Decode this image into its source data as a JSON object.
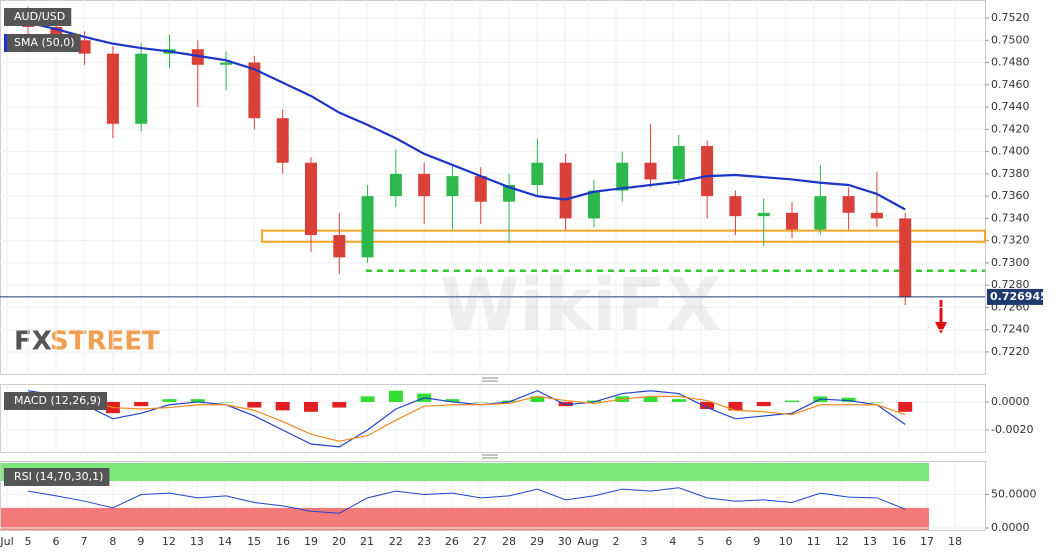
{
  "brand": {
    "prefix": "FX",
    "suffix": "STREET",
    "watermark": "WikiFX"
  },
  "chart_data": [
    {
      "type": "candlestick",
      "title": "AUD/USD",
      "x": [
        0,
        1,
        2,
        3,
        4,
        5,
        6,
        7,
        8,
        9,
        10,
        11,
        12,
        13,
        14,
        15,
        16,
        17,
        18,
        19,
        20,
        21,
        22,
        23,
        24,
        25,
        26,
        27,
        28,
        29,
        30,
        31
      ],
      "open": [
        0.752,
        0.7512,
        0.75,
        0.7488,
        0.7425,
        0.7488,
        0.7492,
        0.7478,
        0.748,
        0.743,
        0.739,
        0.7325,
        0.7305,
        0.736,
        0.738,
        0.736,
        0.7378,
        0.7355,
        0.737,
        0.739,
        0.734,
        0.7365,
        0.739,
        0.7375,
        0.7405,
        0.736,
        0.7342,
        0.7345,
        0.733,
        0.736,
        0.7345,
        0.734
      ],
      "high": [
        0.753,
        0.7522,
        0.7508,
        0.7495,
        0.7498,
        0.7505,
        0.75,
        0.749,
        0.7486,
        0.7438,
        0.7395,
        0.7345,
        0.737,
        0.7402,
        0.739,
        0.7388,
        0.7386,
        0.738,
        0.7412,
        0.7398,
        0.7375,
        0.74,
        0.7425,
        0.7415,
        0.741,
        0.7365,
        0.7358,
        0.7355,
        0.7388,
        0.7368,
        0.7382,
        0.7345
      ],
      "low": [
        0.7505,
        0.749,
        0.7478,
        0.7412,
        0.7418,
        0.7475,
        0.744,
        0.7455,
        0.742,
        0.738,
        0.731,
        0.729,
        0.73,
        0.735,
        0.7335,
        0.733,
        0.7335,
        0.7318,
        0.736,
        0.733,
        0.7332,
        0.7355,
        0.7368,
        0.737,
        0.734,
        0.7325,
        0.7315,
        0.7322,
        0.7325,
        0.733,
        0.7332,
        0.7262
      ],
      "close": [
        0.7512,
        0.75,
        0.7488,
        0.7425,
        0.7488,
        0.7492,
        0.7478,
        0.748,
        0.743,
        0.739,
        0.7325,
        0.7305,
        0.736,
        0.738,
        0.736,
        0.7378,
        0.7355,
        0.737,
        0.739,
        0.734,
        0.7365,
        0.739,
        0.7375,
        0.7405,
        0.736,
        0.7342,
        0.7345,
        0.733,
        0.736,
        0.7345,
        0.734,
        0.7269
      ],
      "up_color": "#2db84d",
      "down_color": "#d9403a",
      "sma": {
        "name": "SMA (50,0)",
        "color": "#1a35c8",
        "values": [
          0.7516,
          0.751,
          0.7503,
          0.7497,
          0.7493,
          0.749,
          0.7486,
          0.7482,
          0.7474,
          0.7462,
          0.745,
          0.7435,
          0.7424,
          0.7412,
          0.7398,
          0.7388,
          0.7378,
          0.7368,
          0.736,
          0.7357,
          0.7364,
          0.7367,
          0.737,
          0.7373,
          0.7378,
          0.7379,
          0.7377,
          0.7375,
          0.7372,
          0.737,
          0.7362,
          0.7348
        ]
      },
      "zone": {
        "from": 0.7319,
        "to": 0.7329,
        "x0": 8.27,
        "color": "#f5a623"
      },
      "support": {
        "value": 0.7293,
        "x0": 11.94,
        "color": "#2ecc2e"
      },
      "last_price": 0.726945,
      "xlim": [
        -0.99,
        33.82
      ],
      "xticks": [
        {
          "value": -0.74,
          "label": "Jul"
        },
        {
          "value": 0,
          "label": "5"
        },
        {
          "value": 0.99,
          "label": "6"
        },
        {
          "value": 1.98,
          "label": "7"
        },
        {
          "value": 3.0,
          "label": "8"
        },
        {
          "value": 3.99,
          "label": "9"
        },
        {
          "value": 4.98,
          "label": "12"
        },
        {
          "value": 5.97,
          "label": "13"
        },
        {
          "value": 6.96,
          "label": "14"
        },
        {
          "value": 7.99,
          "label": "15"
        },
        {
          "value": 9.01,
          "label": "16"
        },
        {
          "value": 10.0,
          "label": "19"
        },
        {
          "value": 10.99,
          "label": "20"
        },
        {
          "value": 11.98,
          "label": "21"
        },
        {
          "value": 13.0,
          "label": "22"
        },
        {
          "value": 14.0,
          "label": "23"
        },
        {
          "value": 14.98,
          "label": "26"
        },
        {
          "value": 15.97,
          "label": "27"
        },
        {
          "value": 17.0,
          "label": "28"
        },
        {
          "value": 17.99,
          "label": "29"
        },
        {
          "value": 18.97,
          "label": "30"
        },
        {
          "value": 19.79,
          "label": "Aug"
        },
        {
          "value": 20.78,
          "label": "2"
        },
        {
          "value": 21.77,
          "label": "3"
        },
        {
          "value": 22.79,
          "label": "4"
        },
        {
          "value": 23.78,
          "label": "5"
        },
        {
          "value": 24.77,
          "label": "6"
        },
        {
          "value": 25.76,
          "label": "9"
        },
        {
          "value": 26.78,
          "label": "10"
        },
        {
          "value": 27.77,
          "label": "11"
        },
        {
          "value": 28.76,
          "label": "12"
        },
        {
          "value": 29.75,
          "label": "13"
        },
        {
          "value": 30.78,
          "label": "16"
        },
        {
          "value": 31.77,
          "label": "17"
        },
        {
          "value": 32.76,
          "label": "18"
        }
      ],
      "ylim": [
        0.71993,
        0.75362
      ],
      "yticks": [
        {
          "value": 0.752,
          "label": "0.7520"
        },
        {
          "value": 0.75,
          "label": "0.7500"
        },
        {
          "value": 0.748,
          "label": "0.7480"
        },
        {
          "value": 0.746,
          "label": "0.7460"
        },
        {
          "value": 0.744,
          "label": "0.7440"
        },
        {
          "value": 0.742,
          "label": "0.7420"
        },
        {
          "value": 0.74,
          "label": "0.7400"
        },
        {
          "value": 0.738,
          "label": "0.7380"
        },
        {
          "value": 0.736,
          "label": "0.7360"
        },
        {
          "value": 0.734,
          "label": "0.7340"
        },
        {
          "value": 0.732,
          "label": "0.7320"
        },
        {
          "value": 0.73,
          "label": "0.7300"
        },
        {
          "value": 0.728,
          "label": "0.7280"
        },
        {
          "value": 0.726,
          "label": "0.7260"
        },
        {
          "value": 0.724,
          "label": "0.7240"
        },
        {
          "value": 0.722,
          "label": "0.7220"
        }
      ],
      "grid": true
    },
    {
      "type": "macd",
      "title": "MACD (12,26,9)",
      "histogram": [
        0.0003,
        0.0002,
        -0.0004,
        -0.0008,
        -0.0003,
        0.0002,
        0.0002,
        0.0,
        -0.0004,
        -0.0006,
        -0.0007,
        -0.0004,
        0.0004,
        0.0008,
        0.0006,
        0.0002,
        0.0,
        0.0001,
        0.0004,
        -0.0003,
        0.0001,
        0.0004,
        0.0004,
        0.0002,
        -0.0005,
        -0.0006,
        -0.0003,
        0.0001,
        0.0004,
        0.0003,
        0.0,
        -0.0007
      ],
      "pos_color": "#33dd33",
      "neg_color": "#e02020",
      "series": [
        {
          "color": "#2244cc",
          "values": [
            0.0008,
            0.0005,
            -0.0002,
            -0.0012,
            -0.0008,
            -0.0002,
            0.0,
            -0.0002,
            -0.001,
            -0.002,
            -0.003,
            -0.0032,
            -0.002,
            -0.0005,
            0.0003,
            0.0,
            -0.0002,
            0.0,
            0.0008,
            -0.0002,
            0.0,
            0.0006,
            0.0008,
            0.0006,
            -0.0004,
            -0.0012,
            -0.001,
            -0.0008,
            0.0002,
            0.0001,
            -0.0002,
            -0.0016
          ]
        },
        {
          "color": "#f08a24",
          "values": [
            0.0005,
            0.0003,
            0.0002,
            -0.0004,
            -0.0005,
            -0.0004,
            -0.0002,
            -0.0002,
            -0.0006,
            -0.0014,
            -0.0023,
            -0.0028,
            -0.0024,
            -0.0013,
            -0.0003,
            -0.0002,
            -0.0002,
            -0.0001,
            0.0004,
            0.0001,
            -0.0001,
            0.0002,
            0.0004,
            0.0004,
            0.0001,
            -0.0006,
            -0.0007,
            -0.0009,
            -0.0002,
            -0.0002,
            -0.0002,
            -0.0009
          ]
        }
      ],
      "ylim": [
        -0.00364,
        0.00121
      ],
      "yticks": [
        {
          "value": 0,
          "label": "0.0000"
        },
        {
          "value": -0.002,
          "label": "-0.0020"
        }
      ]
    },
    {
      "type": "rsi",
      "title": "RSI (14,70,30,1)",
      "values": [
        55,
        48,
        40,
        30,
        50,
        52,
        45,
        48,
        38,
        33,
        25,
        22,
        45,
        55,
        50,
        52,
        45,
        48,
        58,
        42,
        48,
        58,
        55,
        60,
        45,
        40,
        42,
        38,
        52,
        46,
        45,
        28
      ],
      "color": "#2244cc",
      "bands": [
        30,
        70
      ],
      "low_color": "#f47a7a",
      "high_color": "#7ee87e",
      "ylim": [
        -4.5,
        98.5
      ],
      "yticks": [
        {
          "value": 50,
          "label": "50.0000"
        },
        {
          "value": 0,
          "label": "0.0000"
        }
      ]
    }
  ]
}
